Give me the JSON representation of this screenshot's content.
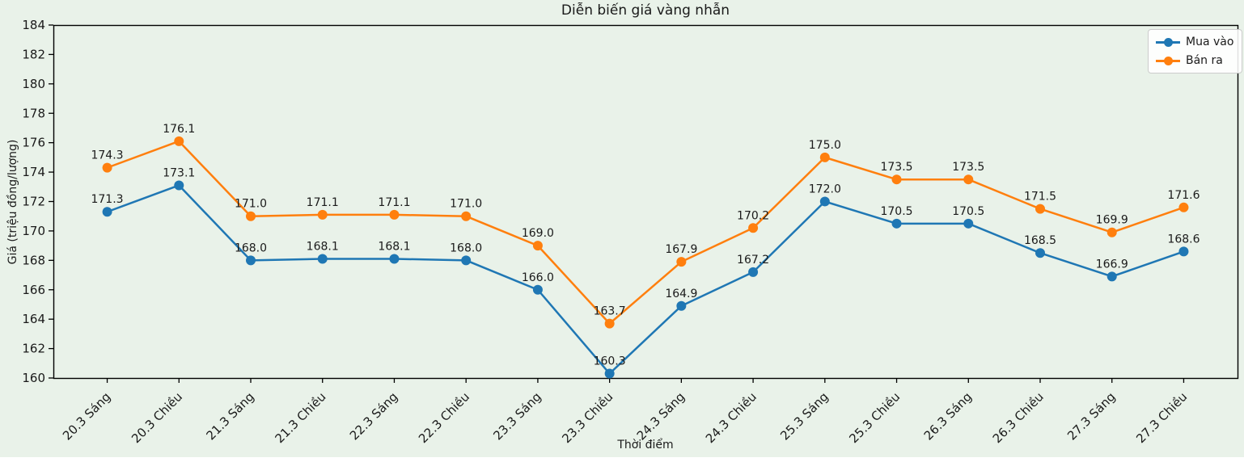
{
  "chart_data": {
    "type": "line",
    "title": "Diễn biến giá vàng nhẫn",
    "xlabel": "Thời điểm",
    "ylabel": "Giá (triệu đồng/lượng)",
    "categories": [
      "20.3 Sáng",
      "20.3 Chiều",
      "21.3 Sáng",
      "21.3 Chiều",
      "22.3 Sáng",
      "22.3 Chiều",
      "23.3 Sáng",
      "23.3 Chiều",
      "24.3 Sáng",
      "24.3 Chiều",
      "25.3 Sáng",
      "25.3 Chiều",
      "26.3 Sáng",
      "26.3 Chiều",
      "27.3 Sáng",
      "27.3 Chiều"
    ],
    "series": [
      {
        "name": "Mua vào",
        "color": "#1f77b4",
        "values": [
          171.3,
          173.1,
          168.0,
          168.1,
          168.1,
          168.0,
          166.0,
          160.3,
          164.9,
          167.2,
          172.0,
          170.5,
          170.5,
          168.5,
          166.9,
          168.6
        ]
      },
      {
        "name": "Bán ra",
        "color": "#ff7f0e",
        "values": [
          174.3,
          176.1,
          171.0,
          171.1,
          171.1,
          171.0,
          169.0,
          163.7,
          167.9,
          170.2,
          175.0,
          173.5,
          173.5,
          171.5,
          169.9,
          171.6
        ]
      }
    ],
    "ylim": [
      160,
      184
    ],
    "ytick_step": 2,
    "grid": false,
    "legend_position": "upper right",
    "point_labels": true,
    "background_color": "#e9f2e9",
    "axis_color": "#000000",
    "x_tick_rotation": 45
  }
}
